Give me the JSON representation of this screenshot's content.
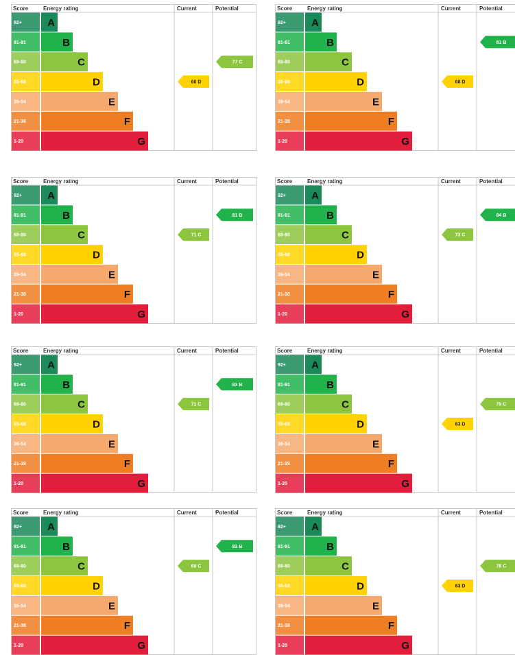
{
  "headers": {
    "score": "Score",
    "energy_rating": "Energy rating",
    "current": "Current",
    "potential": "Potential"
  },
  "bands": [
    {
      "band": "A",
      "range": "92+",
      "color": "#1a8a5a"
    },
    {
      "band": "B",
      "range": "81-91",
      "color": "#22b24c"
    },
    {
      "band": "C",
      "range": "69-80",
      "color": "#8cc63f"
    },
    {
      "band": "D",
      "range": "55-68",
      "color": "#ffd200"
    },
    {
      "band": "E",
      "range": "39-54",
      "color": "#f6a96c"
    },
    {
      "band": "F",
      "range": "21-38",
      "color": "#ef7d22"
    },
    {
      "band": "G",
      "range": "1-20",
      "color": "#e31d3c"
    }
  ],
  "chart_data": [
    {
      "type": "bar",
      "current": {
        "score": 60,
        "band": "D",
        "label": "60 D"
      },
      "potential": {
        "score": 77,
        "band": "C",
        "label": "77 C"
      }
    },
    {
      "type": "bar",
      "current": {
        "score": 68,
        "band": "D",
        "label": "68 D"
      },
      "potential": {
        "score": 81,
        "band": "B",
        "label": "81 B"
      }
    },
    {
      "type": "bar",
      "current": {
        "score": 71,
        "band": "C",
        "label": "71 C"
      },
      "potential": {
        "score": 81,
        "band": "B",
        "label": "81 B"
      }
    },
    {
      "type": "bar",
      "current": {
        "score": 73,
        "band": "C",
        "label": "73 C"
      },
      "potential": {
        "score": 84,
        "band": "B",
        "label": "84 B"
      }
    },
    {
      "type": "bar",
      "current": {
        "score": 71,
        "band": "C",
        "label": "71 C"
      },
      "potential": {
        "score": 83,
        "band": "B",
        "label": "83 B"
      }
    },
    {
      "type": "bar",
      "current": {
        "score": 63,
        "band": "D",
        "label": "63 D"
      },
      "potential": {
        "score": 79,
        "band": "C",
        "label": "79 C"
      }
    },
    {
      "type": "bar",
      "current": {
        "score": 69,
        "band": "C",
        "label": "69 C"
      },
      "potential": {
        "score": 83,
        "band": "B",
        "label": "83 B"
      }
    },
    {
      "type": "bar",
      "current": {
        "score": 63,
        "band": "D",
        "label": "63 D"
      },
      "potential": {
        "score": 78,
        "band": "C",
        "label": "78 C"
      }
    }
  ]
}
